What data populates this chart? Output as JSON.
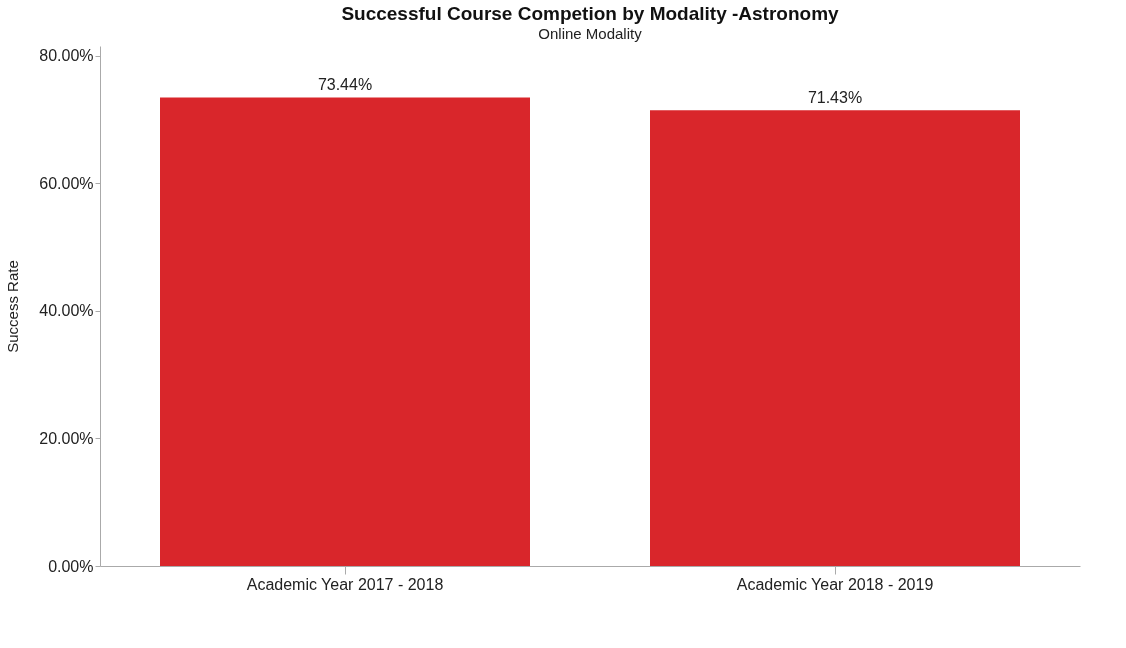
{
  "chart_data": {
    "type": "bar",
    "title": "Successful Course Competion by Modality -Astronomy",
    "subtitle": "Online Modality",
    "ylabel": "Success Rate",
    "categories": [
      "Academic Year 2017 - 2018",
      "Academic Year 2018 - 2019"
    ],
    "values": [
      73.44,
      71.43
    ],
    "value_labels": [
      "73.44%",
      "71.43%"
    ],
    "color": "#d9262b",
    "ylim": [
      0,
      81.5
    ],
    "yticks": [
      {
        "value": 0,
        "label": "0.00%"
      },
      {
        "value": 20,
        "label": "20.00%"
      },
      {
        "value": 40,
        "label": "40.00%"
      },
      {
        "value": 60,
        "label": "60.00%"
      },
      {
        "value": 80,
        "label": "80.00%"
      }
    ],
    "grid": false
  }
}
